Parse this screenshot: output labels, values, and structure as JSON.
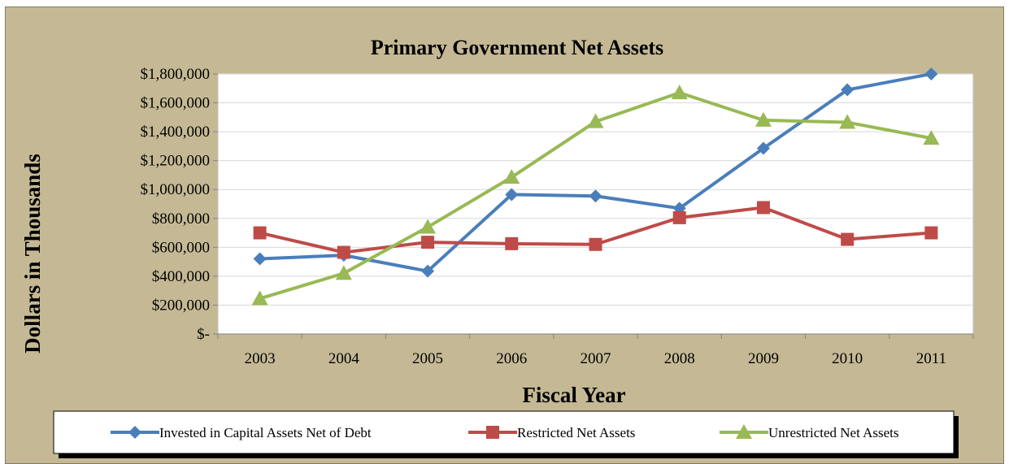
{
  "chart_data": {
    "type": "line",
    "title": "Primary Government Net Assets",
    "xlabel": "Fiscal Year",
    "ylabel": "Dollars in Thousands",
    "categories": [
      "2003",
      "2004",
      "2005",
      "2006",
      "2007",
      "2008",
      "2009",
      "2010",
      "2011"
    ],
    "ylim": [
      0,
      1800000
    ],
    "yticks": [
      0,
      200000,
      400000,
      600000,
      800000,
      1000000,
      1200000,
      1400000,
      1600000,
      1800000
    ],
    "ytick_labels": [
      "$-",
      "$200,000",
      "$400,000",
      "$600,000",
      "$800,000",
      "$1,000,000",
      "$1,200,000",
      "$1,400,000",
      "$1,600,000",
      "$1,800,000"
    ],
    "grid": true,
    "legend_position": "bottom",
    "series": [
      {
        "name": "Invested in Capital Assets Net of Debt",
        "color": "#4a7ebb",
        "marker": "diamond",
        "values": [
          520000,
          545000,
          435000,
          965000,
          955000,
          870000,
          1285000,
          1690000,
          1800000
        ]
      },
      {
        "name": "Restricted Net Assets",
        "color": "#be4b48",
        "marker": "square",
        "values": [
          700000,
          565000,
          635000,
          625000,
          620000,
          805000,
          875000,
          655000,
          700000
        ]
      },
      {
        "name": "Unrestricted Net Assets",
        "color": "#98b954",
        "marker": "triangle",
        "values": [
          245000,
          420000,
          740000,
          1085000,
          1470000,
          1670000,
          1480000,
          1465000,
          1355000
        ]
      }
    ]
  }
}
